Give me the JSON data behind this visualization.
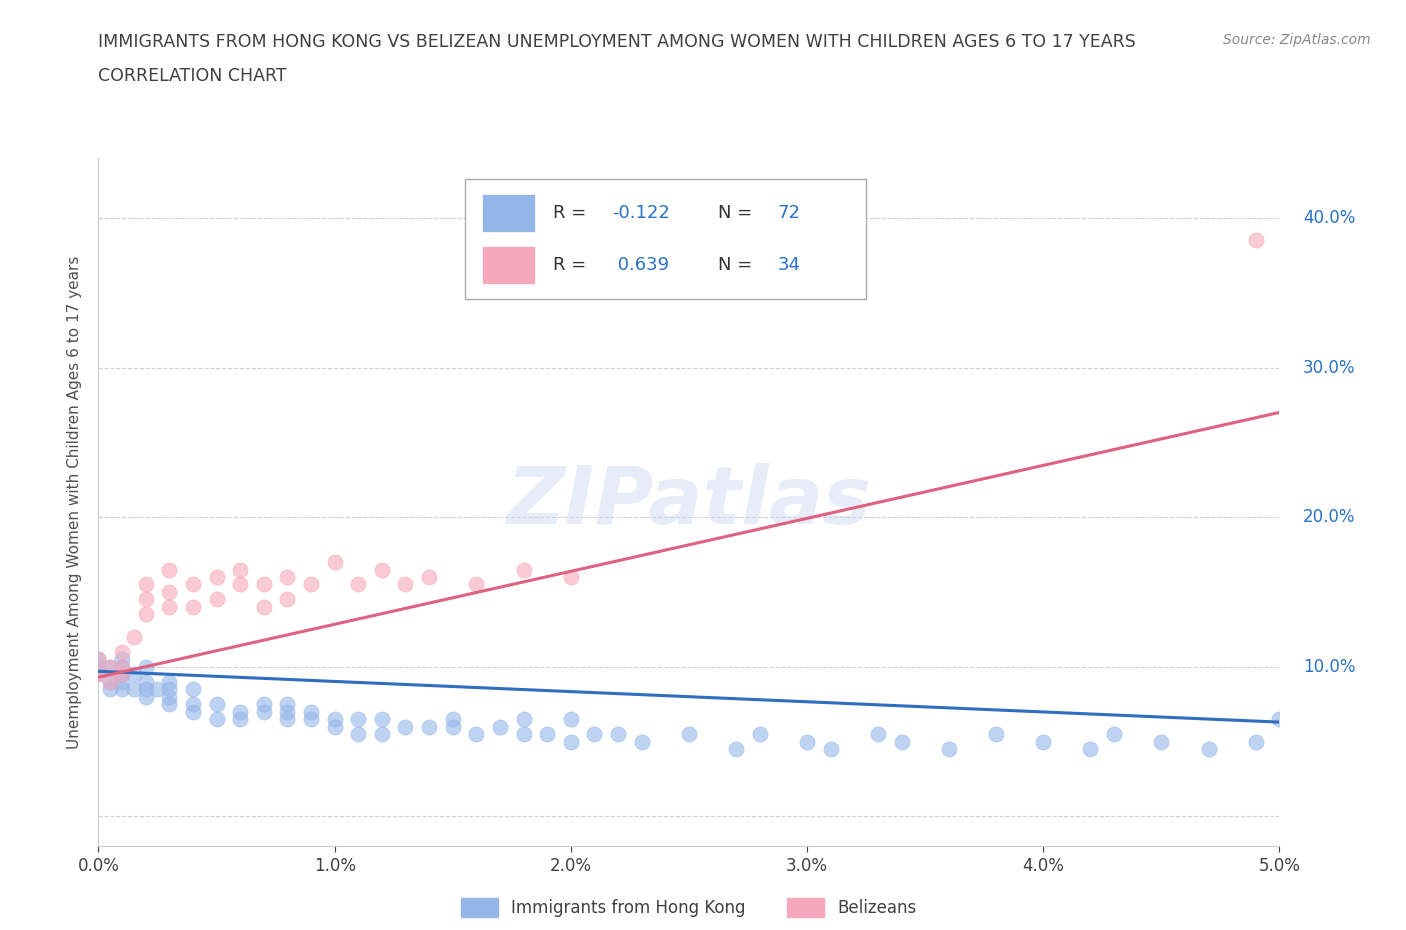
{
  "title_line1": "IMMIGRANTS FROM HONG KONG VS BELIZEAN UNEMPLOYMENT AMONG WOMEN WITH CHILDREN AGES 6 TO 17 YEARS",
  "title_line2": "CORRELATION CHART",
  "source_text": "Source: ZipAtlas.com",
  "ylabel": "Unemployment Among Women with Children Ages 6 to 17 years",
  "x_tick_labels": [
    "0.0%",
    "1.0%",
    "2.0%",
    "3.0%",
    "4.0%",
    "5.0%"
  ],
  "y_tick_labels": [
    "",
    "10.0%",
    "20.0%",
    "30.0%",
    "40.0%"
  ],
  "xlim": [
    0.0,
    0.05
  ],
  "ylim": [
    -0.02,
    0.44
  ],
  "watermark_text": "ZIPatlas",
  "blue_color": "#93b5e8",
  "pink_color": "#f5a8bb",
  "blue_line_color": "#2e6dbf",
  "pink_line_color": "#e06080",
  "legend_label_blue": "Immigrants from Hong Kong",
  "legend_label_pink": "Belizeans",
  "blue_scatter_x": [
    0.0,
    0.0,
    0.0,
    0.0005,
    0.0005,
    0.0005,
    0.001,
    0.001,
    0.001,
    0.001,
    0.001,
    0.0015,
    0.0015,
    0.002,
    0.002,
    0.002,
    0.002,
    0.0025,
    0.003,
    0.003,
    0.003,
    0.003,
    0.004,
    0.004,
    0.004,
    0.005,
    0.005,
    0.006,
    0.006,
    0.007,
    0.007,
    0.008,
    0.008,
    0.008,
    0.009,
    0.009,
    0.01,
    0.01,
    0.011,
    0.011,
    0.012,
    0.012,
    0.013,
    0.014,
    0.015,
    0.015,
    0.016,
    0.017,
    0.018,
    0.018,
    0.019,
    0.02,
    0.02,
    0.021,
    0.022,
    0.023,
    0.025,
    0.027,
    0.028,
    0.03,
    0.031,
    0.033,
    0.034,
    0.036,
    0.038,
    0.04,
    0.042,
    0.043,
    0.045,
    0.047,
    0.049,
    0.05
  ],
  "blue_scatter_y": [
    0.095,
    0.1,
    0.105,
    0.085,
    0.09,
    0.1,
    0.085,
    0.09,
    0.095,
    0.1,
    0.105,
    0.085,
    0.095,
    0.08,
    0.085,
    0.09,
    0.1,
    0.085,
    0.075,
    0.08,
    0.085,
    0.09,
    0.07,
    0.075,
    0.085,
    0.065,
    0.075,
    0.065,
    0.07,
    0.07,
    0.075,
    0.065,
    0.07,
    0.075,
    0.065,
    0.07,
    0.06,
    0.065,
    0.055,
    0.065,
    0.055,
    0.065,
    0.06,
    0.06,
    0.06,
    0.065,
    0.055,
    0.06,
    0.055,
    0.065,
    0.055,
    0.05,
    0.065,
    0.055,
    0.055,
    0.05,
    0.055,
    0.045,
    0.055,
    0.05,
    0.045,
    0.055,
    0.05,
    0.045,
    0.055,
    0.05,
    0.045,
    0.055,
    0.05,
    0.045,
    0.05,
    0.065
  ],
  "pink_scatter_x": [
    0.0,
    0.0,
    0.0005,
    0.0005,
    0.001,
    0.001,
    0.001,
    0.0015,
    0.002,
    0.002,
    0.002,
    0.003,
    0.003,
    0.003,
    0.004,
    0.004,
    0.005,
    0.005,
    0.006,
    0.006,
    0.007,
    0.007,
    0.008,
    0.008,
    0.009,
    0.01,
    0.011,
    0.012,
    0.013,
    0.014,
    0.016,
    0.018,
    0.02,
    0.049
  ],
  "pink_scatter_y": [
    0.095,
    0.105,
    0.09,
    0.1,
    0.095,
    0.1,
    0.11,
    0.12,
    0.135,
    0.145,
    0.155,
    0.14,
    0.15,
    0.165,
    0.14,
    0.155,
    0.145,
    0.16,
    0.155,
    0.165,
    0.14,
    0.155,
    0.145,
    0.16,
    0.155,
    0.17,
    0.155,
    0.165,
    0.155,
    0.16,
    0.155,
    0.165,
    0.16,
    0.385
  ],
  "blue_trend_x": [
    0.0,
    0.05
  ],
  "blue_trend_y": [
    0.097,
    0.063
  ],
  "pink_trend_x": [
    0.0,
    0.05
  ],
  "pink_trend_y": [
    0.093,
    0.27
  ],
  "grid_color": "#d0d0d0",
  "tick_label_color": "#2a72c8",
  "title_color": "#404040",
  "axis_label_color": "#505050"
}
